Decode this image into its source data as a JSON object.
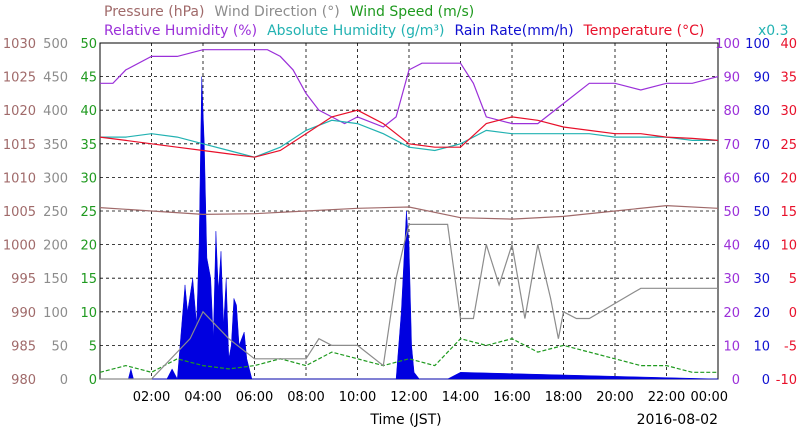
{
  "chart_data": {
    "type": "line",
    "title_rows": [
      [
        {
          "text": "Pressure (hPa)",
          "color": "#a06a6a"
        },
        {
          "text": "Wind Direction (°)",
          "color": "#8c8c8c"
        },
        {
          "text": "Wind Speed (m/s)",
          "color": "#1f9a1f"
        }
      ],
      [
        {
          "text": "Relative Humidity (%)",
          "color": "#9b30d9"
        },
        {
          "text": "Absolute Humidity (g/m³)",
          "color": "#22b2b2"
        },
        {
          "text": "Rain Rate(mm/h)",
          "color": "#1010d0"
        },
        {
          "text": "Temperature (°C)",
          "color": "#e8102a"
        }
      ]
    ],
    "rain_scale_note": {
      "text": "x0.3",
      "color": "#22b2b2"
    },
    "xlabel": "Time (JST)",
    "date_label": "2016-08-02",
    "x_ticks": [
      "02:00",
      "04:00",
      "06:00",
      "08:00",
      "10:00",
      "12:00",
      "14:00",
      "16:00",
      "18:00",
      "20:00",
      "22:00",
      "00:00"
    ],
    "x_range_hours": [
      0,
      24
    ],
    "left_axes": [
      {
        "name": "Pressure (hPa)",
        "color": "#a06a6a",
        "range": [
          980,
          1030
        ],
        "ticks": [
          "980",
          "985",
          "990",
          "995",
          "1000",
          "1005",
          "1010",
          "1015",
          "1020",
          "1025",
          "1030"
        ]
      },
      {
        "name": "Wind Direction (°)",
        "color": "#8c8c8c",
        "range": [
          0,
          500
        ],
        "ticks": [
          "0",
          "50",
          "100",
          "150",
          "200",
          "250",
          "300",
          "350",
          "400",
          "450",
          "500"
        ]
      },
      {
        "name": "Wind Speed (m/s)",
        "color": "#1f9a1f",
        "range": [
          0,
          50
        ],
        "ticks": [
          "0",
          "5",
          "10",
          "15",
          "20",
          "25",
          "30",
          "35",
          "40",
          "45",
          "50"
        ]
      }
    ],
    "right_axes": [
      {
        "name": "Relative Humidity (%)",
        "color": "#9b30d9",
        "range": [
          0,
          100
        ],
        "ticks": [
          "0",
          "10",
          "20",
          "30",
          "40",
          "50",
          "60",
          "70",
          "80",
          "90",
          "100"
        ]
      },
      {
        "name": "Rain Rate (mm/h)",
        "color": "#1010d0",
        "range": [
          0,
          100
        ],
        "ticks": [
          "0",
          "10",
          "20",
          "30",
          "40",
          "50",
          "60",
          "70",
          "80",
          "90",
          "100"
        ]
      },
      {
        "name": "Temperature (°C)",
        "color": "#e8102a",
        "range": [
          -10,
          40
        ],
        "ticks": [
          "-10",
          "-5",
          "0",
          "5",
          "10",
          "15",
          "20",
          "25",
          "30",
          "35",
          "40"
        ]
      }
    ],
    "series": [
      {
        "name": "Pressure (hPa)",
        "color": "#a06a6a",
        "axis": "pressure",
        "style": "line",
        "x": [
          0,
          2,
          4,
          6,
          8,
          10,
          12,
          14,
          16,
          18,
          20,
          22,
          24
        ],
        "y": [
          1005.5,
          1005.0,
          1004.5,
          1004.6,
          1005.0,
          1005.4,
          1005.6,
          1004.0,
          1003.8,
          1004.2,
          1005.0,
          1005.8,
          1005.4
        ]
      },
      {
        "name": "Wind Direction (°)",
        "color": "#8c8c8c",
        "axis": "winddir",
        "style": "line",
        "x": [
          0,
          2,
          3.5,
          4,
          5,
          6,
          7,
          8,
          8.5,
          9,
          10,
          11,
          11.5,
          11.8,
          12,
          12.5,
          13,
          13.5,
          14,
          14.5,
          15,
          15.5,
          16,
          16.5,
          17,
          17.5,
          17.8,
          18,
          18.5,
          19,
          21,
          24
        ],
        "y": [
          0,
          0,
          60,
          100,
          60,
          30,
          30,
          30,
          60,
          50,
          50,
          20,
          150,
          200,
          230,
          230,
          230,
          230,
          90,
          90,
          200,
          140,
          200,
          90,
          200,
          120,
          60,
          100,
          90,
          90,
          135,
          135
        ]
      },
      {
        "name": "Wind Speed (m/s)",
        "color": "#1f9a1f",
        "axis": "windspeed",
        "style": "line",
        "x": [
          0,
          1,
          2,
          3,
          4,
          5,
          6,
          7,
          8,
          9,
          10,
          11,
          12,
          13,
          14,
          15,
          16,
          17,
          18,
          19,
          20,
          21,
          22,
          23,
          24
        ],
        "y": [
          1,
          2,
          1,
          3,
          2,
          1.5,
          2,
          3,
          2,
          4,
          3,
          2,
          3,
          2,
          6,
          5,
          6,
          4,
          5,
          4,
          3,
          2,
          2,
          1,
          1
        ]
      },
      {
        "name": "Relative Humidity (%)",
        "color": "#9b30d9",
        "axis": "rh",
        "style": "line",
        "x": [
          0,
          0.5,
          1,
          2,
          3,
          4,
          4.5,
          5,
          6,
          6.5,
          7,
          7.5,
          8,
          8.5,
          9,
          9.5,
          10,
          11,
          11.5,
          12,
          12.5,
          13,
          14,
          14.5,
          15,
          16,
          17,
          18,
          19,
          20,
          21,
          22,
          23,
          24
        ],
        "y": [
          88,
          88,
          92,
          96,
          96,
          98,
          98,
          98,
          98,
          98,
          96,
          92,
          85,
          80,
          78,
          76,
          78,
          75,
          78,
          92,
          94,
          94,
          94,
          88,
          78,
          76,
          76,
          82,
          88,
          88,
          86,
          88,
          88,
          90
        ]
      },
      {
        "name": "Absolute Humidity (g/m³)",
        "color": "#22b2b2",
        "axis": "temp",
        "style": "line",
        "x": [
          0,
          1,
          2,
          3,
          4,
          5,
          6,
          7,
          8,
          9,
          10,
          11,
          12,
          13,
          14,
          15,
          16,
          17,
          18,
          19,
          20,
          21,
          22,
          23,
          24
        ],
        "y": [
          26,
          26,
          26.5,
          26,
          25,
          24,
          23,
          24.5,
          27,
          28.5,
          28,
          26.5,
          24.5,
          24,
          25,
          27,
          26.5,
          26.5,
          26.5,
          26.5,
          26,
          26,
          26,
          25.5,
          25.5
        ]
      },
      {
        "name": "Temperature (°C)",
        "color": "#e8102a",
        "axis": "temp",
        "style": "line",
        "x": [
          0,
          1,
          2,
          3,
          4,
          5,
          6,
          7,
          8,
          9,
          10,
          11,
          12,
          13,
          14,
          15,
          16,
          17,
          18,
          19,
          20,
          21,
          22,
          23,
          24
        ],
        "y": [
          26,
          25.5,
          25,
          24.5,
          24,
          23.5,
          23,
          24,
          26.5,
          29,
          30,
          28,
          25,
          24.5,
          24.5,
          28,
          29,
          28.5,
          27.5,
          27,
          26.5,
          26.5,
          26,
          25.8,
          25.5
        ]
      },
      {
        "name": "Rain Rate (mm/h)",
        "color": "#0000e0",
        "axis": "rain",
        "style": "area",
        "x": [
          0,
          1.1,
          1.2,
          1.3,
          2.6,
          2.8,
          3.0,
          3.3,
          3.4,
          3.6,
          3.75,
          3.85,
          3.95,
          4.05,
          4.15,
          4.3,
          4.4,
          4.5,
          4.6,
          4.7,
          4.8,
          4.9,
          5.0,
          5.1,
          5.2,
          5.3,
          5.4,
          5.6,
          5.7,
          5.9,
          11.5,
          11.7,
          11.9,
          12.0,
          12.1,
          12.2,
          12.4,
          13.5,
          14.0,
          24
        ],
        "y": [
          0,
          0,
          3,
          0,
          0,
          3,
          0,
          28,
          20,
          30,
          16,
          40,
          90,
          70,
          36,
          30,
          12,
          44,
          26,
          38,
          16,
          30,
          6,
          10,
          24,
          22,
          10,
          14,
          6,
          0,
          0,
          20,
          50,
          40,
          10,
          2,
          0,
          0,
          2,
          0
        ]
      }
    ]
  }
}
